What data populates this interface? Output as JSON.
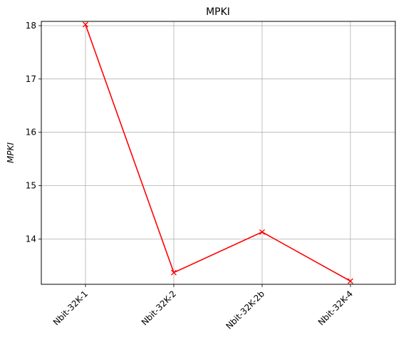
{
  "chart_data": {
    "type": "line",
    "title": "MPKI",
    "xlabel": "",
    "ylabel": "MPKI",
    "categories": [
      "Nbit-32K-1",
      "Nbit-32K-2",
      "Nbit-32K-2b",
      "Nbit-32K-4"
    ],
    "series": [
      {
        "values": [
          18.02,
          13.37,
          14.13,
          13.21
        ],
        "color": "#ff0000",
        "marker": "x"
      }
    ],
    "ylim": [
      13.15,
      18.08
    ],
    "yticks": [
      14,
      15,
      16,
      17,
      18
    ],
    "grid": true,
    "grid_color": "#b0b0b0",
    "xtick_rotation": 45
  }
}
